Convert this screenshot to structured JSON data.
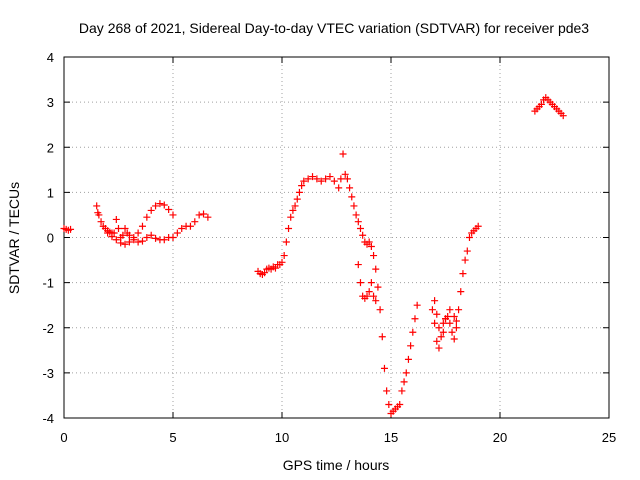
{
  "chart_data": {
    "type": "scatter",
    "title": "Day 268 of 2021, Sidereal Day-to-day VTEC variation (SDTVAR) for receiver pde3",
    "xlabel": "GPS time / hours",
    "ylabel": "SDTVAR / TECUs",
    "xlim": [
      0,
      25
    ],
    "ylim": [
      -4,
      4
    ],
    "xticks": [
      0,
      5,
      10,
      15,
      20,
      25
    ],
    "yticks": [
      -4,
      -3,
      -2,
      -1,
      0,
      1,
      2,
      3,
      4
    ],
    "xtick_labels": [
      "0",
      "5",
      "10",
      "15",
      "20",
      "25"
    ],
    "ytick_labels": [
      "-4",
      "-3",
      "-2",
      "-1",
      "0",
      "1",
      "2",
      "3",
      "4"
    ],
    "grid": true,
    "marker": "plus",
    "color": "#ff0000",
    "series": [
      {
        "name": "pde3 SDTVAR",
        "points": [
          [
            0.0,
            0.2
          ],
          [
            0.1,
            0.18
          ],
          [
            0.2,
            0.16
          ],
          [
            0.3,
            0.18
          ],
          [
            1.5,
            0.7
          ],
          [
            1.55,
            0.55
          ],
          [
            1.6,
            0.5
          ],
          [
            1.7,
            0.35
          ],
          [
            1.8,
            0.25
          ],
          [
            1.9,
            0.2
          ],
          [
            2.0,
            0.15
          ],
          [
            2.1,
            0.12
          ],
          [
            2.2,
            0.1
          ],
          [
            2.3,
            0.1
          ],
          [
            2.4,
            0.4
          ],
          [
            2.5,
            0.2
          ],
          [
            2.6,
            0.0
          ],
          [
            2.7,
            0.05
          ],
          [
            2.8,
            0.2
          ],
          [
            2.9,
            0.1
          ],
          [
            3.0,
            0.05
          ],
          [
            3.2,
            0.0
          ],
          [
            3.4,
            0.1
          ],
          [
            3.6,
            0.25
          ],
          [
            3.8,
            0.45
          ],
          [
            4.0,
            0.6
          ],
          [
            4.2,
            0.7
          ],
          [
            4.4,
            0.75
          ],
          [
            4.6,
            0.72
          ],
          [
            4.8,
            0.62
          ],
          [
            5.0,
            0.5
          ],
          [
            2.0,
            0.1
          ],
          [
            2.2,
            0.02
          ],
          [
            2.4,
            -0.05
          ],
          [
            2.6,
            -0.12
          ],
          [
            2.8,
            -0.15
          ],
          [
            3.0,
            -0.1
          ],
          [
            3.2,
            -0.05
          ],
          [
            3.4,
            -0.1
          ],
          [
            3.6,
            -0.08
          ],
          [
            3.8,
            0.0
          ],
          [
            4.0,
            0.05
          ],
          [
            4.2,
            -0.02
          ],
          [
            4.4,
            -0.05
          ],
          [
            4.6,
            -0.05
          ],
          [
            4.8,
            0.0
          ],
          [
            5.0,
            0.0
          ],
          [
            5.2,
            0.1
          ],
          [
            5.4,
            0.2
          ],
          [
            5.6,
            0.25
          ],
          [
            5.8,
            0.25
          ],
          [
            6.0,
            0.35
          ],
          [
            6.2,
            0.5
          ],
          [
            6.4,
            0.52
          ],
          [
            6.6,
            0.45
          ],
          [
            8.9,
            -0.75
          ],
          [
            9.0,
            -0.8
          ],
          [
            9.1,
            -0.82
          ],
          [
            9.2,
            -0.78
          ],
          [
            9.3,
            -0.7
          ],
          [
            9.4,
            -0.68
          ],
          [
            9.5,
            -0.7
          ],
          [
            9.6,
            -0.65
          ],
          [
            9.7,
            -0.68
          ],
          [
            9.8,
            -0.6
          ],
          [
            9.9,
            -0.6
          ],
          [
            10.0,
            -0.55
          ],
          [
            10.1,
            -0.4
          ],
          [
            10.2,
            -0.1
          ],
          [
            10.3,
            0.2
          ],
          [
            10.4,
            0.45
          ],
          [
            10.5,
            0.6
          ],
          [
            10.6,
            0.7
          ],
          [
            10.7,
            0.85
          ],
          [
            10.8,
            1.0
          ],
          [
            10.9,
            1.15
          ],
          [
            11.0,
            1.25
          ],
          [
            11.2,
            1.3
          ],
          [
            11.4,
            1.35
          ],
          [
            11.6,
            1.3
          ],
          [
            11.8,
            1.25
          ],
          [
            12.0,
            1.3
          ],
          [
            12.2,
            1.35
          ],
          [
            12.4,
            1.25
          ],
          [
            12.6,
            1.1
          ],
          [
            12.7,
            1.3
          ],
          [
            12.8,
            1.85
          ],
          [
            12.9,
            1.4
          ],
          [
            13.0,
            1.3
          ],
          [
            13.1,
            1.1
          ],
          [
            13.2,
            0.9
          ],
          [
            13.3,
            0.7
          ],
          [
            13.4,
            0.5
          ],
          [
            13.5,
            0.35
          ],
          [
            13.6,
            0.2
          ],
          [
            13.7,
            0.05
          ],
          [
            13.8,
            -0.1
          ],
          [
            13.9,
            -0.15
          ],
          [
            14.0,
            -0.1
          ],
          [
            14.1,
            -0.2
          ],
          [
            14.2,
            -0.4
          ],
          [
            14.3,
            -0.7
          ],
          [
            14.4,
            -1.1
          ],
          [
            14.5,
            -1.6
          ],
          [
            14.6,
            -2.2
          ],
          [
            14.7,
            -2.9
          ],
          [
            14.8,
            -3.4
          ],
          [
            14.9,
            -3.7
          ],
          [
            15.0,
            -3.9
          ],
          [
            15.1,
            -3.85
          ],
          [
            15.2,
            -3.8
          ],
          [
            15.3,
            -3.75
          ],
          [
            15.4,
            -3.7
          ],
          [
            15.5,
            -3.4
          ],
          [
            15.6,
            -3.2
          ],
          [
            15.7,
            -3.0
          ],
          [
            15.8,
            -2.7
          ],
          [
            15.9,
            -2.4
          ],
          [
            16.0,
            -2.1
          ],
          [
            16.1,
            -1.8
          ],
          [
            16.2,
            -1.5
          ],
          [
            13.5,
            -0.6
          ],
          [
            13.6,
            -1.0
          ],
          [
            13.7,
            -1.3
          ],
          [
            13.8,
            -1.35
          ],
          [
            13.9,
            -1.3
          ],
          [
            14.0,
            -1.2
          ],
          [
            14.1,
            -1.0
          ],
          [
            14.2,
            -1.3
          ],
          [
            14.3,
            -1.4
          ],
          [
            16.9,
            -1.6
          ],
          [
            17.0,
            -1.9
          ],
          [
            17.1,
            -2.3
          ],
          [
            17.2,
            -2.45
          ],
          [
            17.3,
            -2.2
          ],
          [
            17.4,
            -1.9
          ],
          [
            17.5,
            -1.8
          ],
          [
            17.6,
            -1.75
          ],
          [
            17.7,
            -1.9
          ],
          [
            17.8,
            -2.1
          ],
          [
            17.9,
            -2.25
          ],
          [
            18.0,
            -2.0
          ],
          [
            18.1,
            -1.6
          ],
          [
            18.2,
            -1.2
          ],
          [
            18.3,
            -0.8
          ],
          [
            18.4,
            -0.5
          ],
          [
            18.5,
            -0.3
          ],
          [
            18.6,
            0.0
          ],
          [
            18.7,
            0.1
          ],
          [
            18.8,
            0.15
          ],
          [
            18.9,
            0.2
          ],
          [
            19.0,
            0.25
          ],
          [
            17.0,
            -1.4
          ],
          [
            17.1,
            -1.7
          ],
          [
            17.2,
            -2.0
          ],
          [
            17.4,
            -2.1
          ],
          [
            17.5,
            -1.8
          ],
          [
            17.7,
            -1.6
          ],
          [
            17.9,
            -1.75
          ],
          [
            18.0,
            -1.85
          ],
          [
            21.6,
            2.8
          ],
          [
            21.7,
            2.85
          ],
          [
            21.8,
            2.9
          ],
          [
            21.9,
            2.95
          ],
          [
            22.0,
            3.05
          ],
          [
            22.1,
            3.1
          ],
          [
            22.2,
            3.05
          ],
          [
            22.3,
            3.0
          ],
          [
            22.4,
            2.95
          ],
          [
            22.5,
            2.9
          ],
          [
            22.6,
            2.85
          ],
          [
            22.7,
            2.8
          ],
          [
            22.8,
            2.75
          ],
          [
            22.9,
            2.7
          ]
        ]
      }
    ]
  }
}
